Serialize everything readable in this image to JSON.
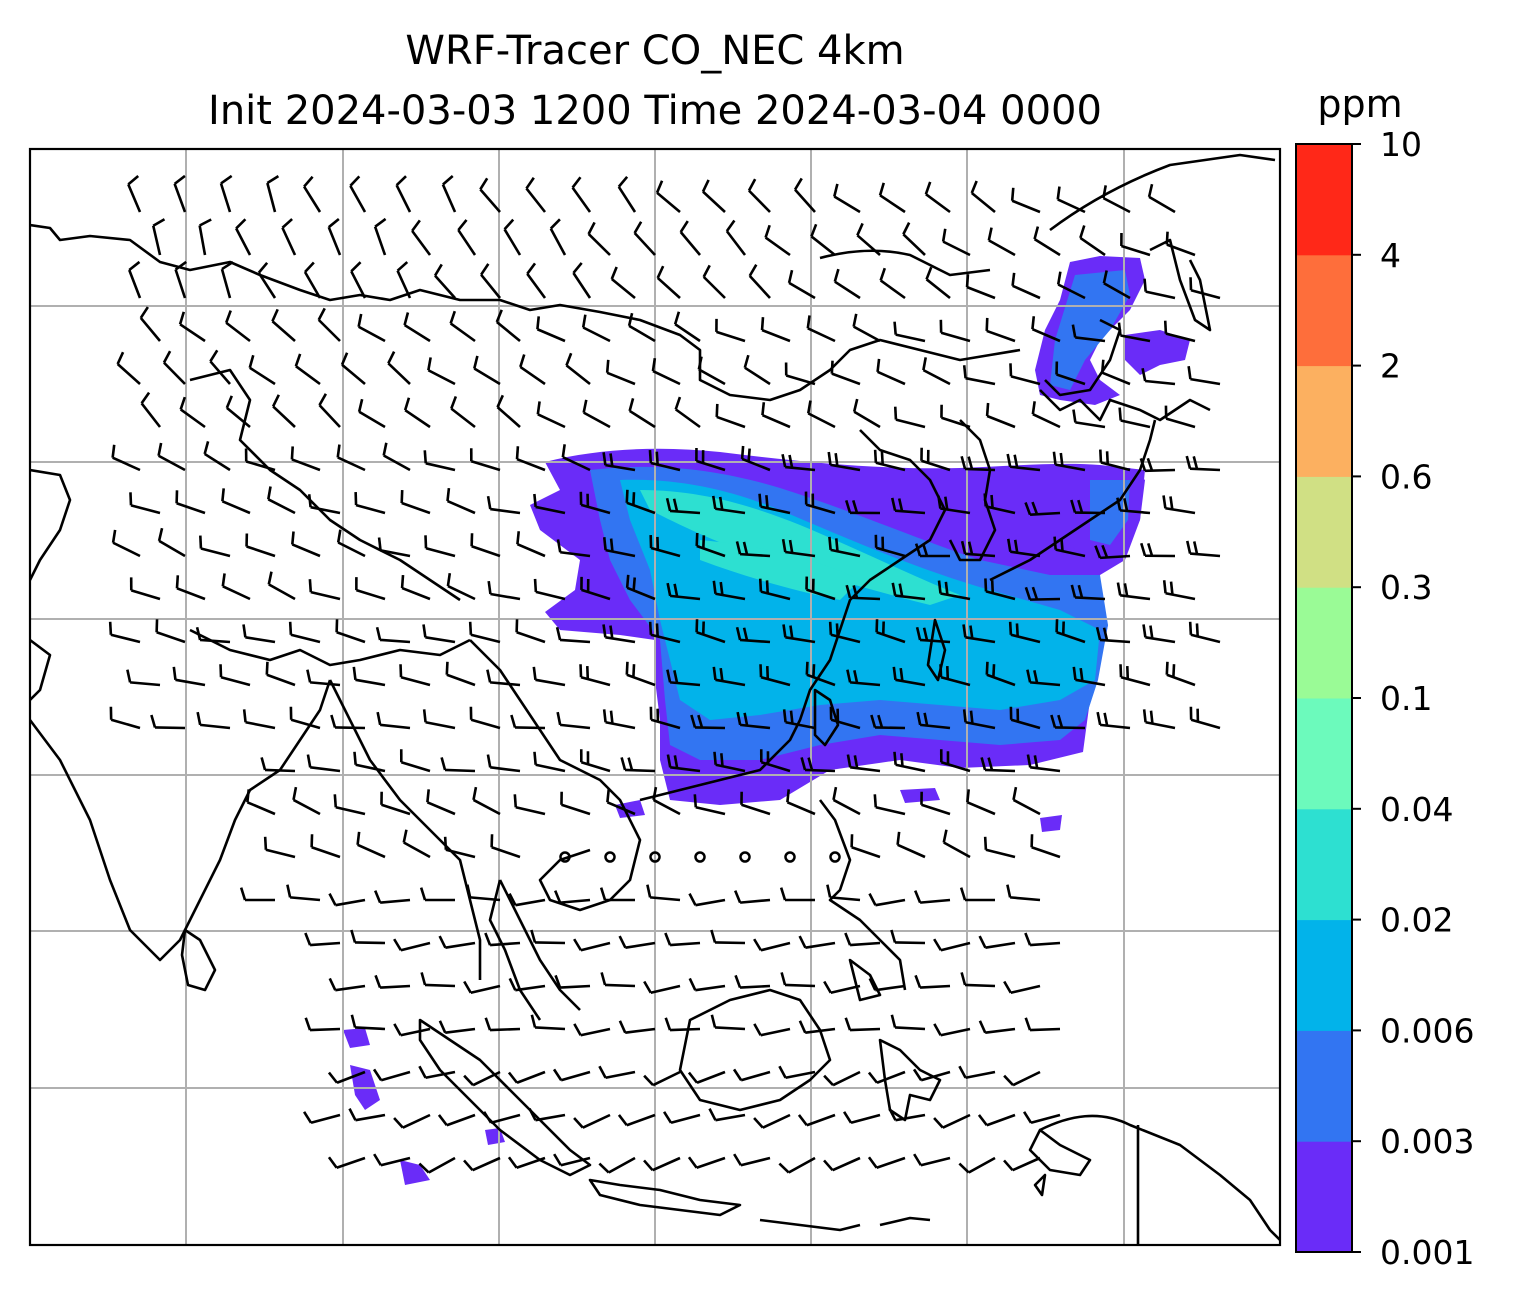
{
  "title": {
    "line1": "WRF-Tracer CO_NEC 4km",
    "line2": "Init 2024-03-03 1200 Time 2024-03-04 0000"
  },
  "colorbar": {
    "unit": "ppm",
    "levels": [
      "0.001",
      "0.003",
      "0.006",
      "0.02",
      "0.04",
      "0.1",
      "0.3",
      "0.6",
      "2",
      "4",
      "10"
    ],
    "colors": [
      "#6a2cf8",
      "#3275f2",
      "#02b3ea",
      "#2de0d1",
      "#6cfabc",
      "#9afb96",
      "#d0e084",
      "#fcb060",
      "#fe6e3b",
      "#ff2818"
    ]
  },
  "map": {
    "gridlines": true,
    "coastline_color": "#000000",
    "gridline_color": "#b0b0b0",
    "features": [
      "coastlines",
      "country borders",
      "wind barbs",
      "tracer concentration shading"
    ]
  }
}
